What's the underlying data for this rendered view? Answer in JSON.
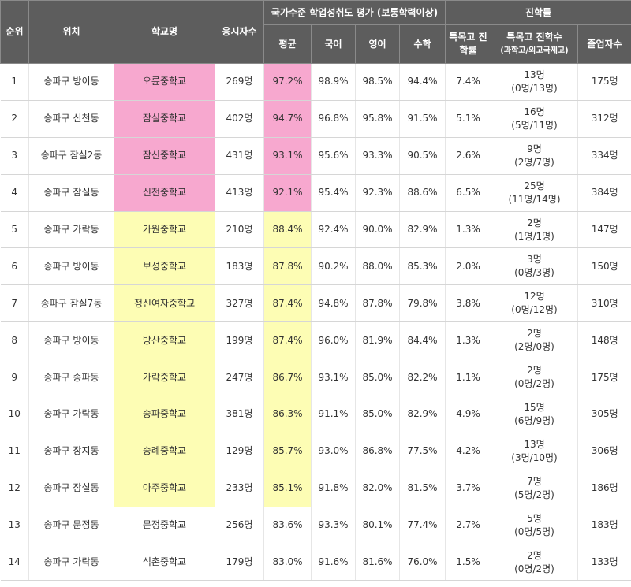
{
  "header": {
    "rank": "순위",
    "location": "위치",
    "school": "학교명",
    "examinees": "응시자수",
    "national_group": "국가수준 학업성취도 평가 (보통학력이상)",
    "avg": "평균",
    "korean": "국어",
    "english": "영어",
    "math": "수학",
    "advancement_group": "진학률",
    "special_rate": "특목고 진학률",
    "special_count_main": "특목고 진학수",
    "special_count_sub": "(과학고/외고국제고)",
    "graduates": "졸업자수"
  },
  "highlight_colors": {
    "pink": "#f7a8cf",
    "yellow": "#fdfdb4"
  },
  "rows": [
    {
      "rank": "1",
      "location": "송파구 방이동",
      "school": "오륜중학교",
      "examinees": "269명",
      "avg": "97.2%",
      "korean": "98.9%",
      "english": "98.5%",
      "math": "94.4%",
      "special_rate": "7.4%",
      "special_count": "13명",
      "special_detail": "(0명/13명)",
      "graduates": "175명",
      "highlight": "pink"
    },
    {
      "rank": "2",
      "location": "송파구 신천동",
      "school": "잠실중학교",
      "examinees": "402명",
      "avg": "94.7%",
      "korean": "96.8%",
      "english": "95.8%",
      "math": "91.5%",
      "special_rate": "5.1%",
      "special_count": "16명",
      "special_detail": "(5명/11명)",
      "graduates": "312명",
      "highlight": "pink"
    },
    {
      "rank": "3",
      "location": "송파구 잠실2동",
      "school": "잠신중학교",
      "examinees": "431명",
      "avg": "93.1%",
      "korean": "95.6%",
      "english": "93.3%",
      "math": "90.5%",
      "special_rate": "2.6%",
      "special_count": "9명",
      "special_detail": "(2명/7명)",
      "graduates": "334명",
      "highlight": "pink"
    },
    {
      "rank": "4",
      "location": "송파구 잠실동",
      "school": "신천중학교",
      "examinees": "413명",
      "avg": "92.1%",
      "korean": "95.4%",
      "english": "92.3%",
      "math": "88.6%",
      "special_rate": "6.5%",
      "special_count": "25명",
      "special_detail": "(11명/14명)",
      "graduates": "384명",
      "highlight": "pink"
    },
    {
      "rank": "5",
      "location": "송파구 가락동",
      "school": "가원중학교",
      "examinees": "210명",
      "avg": "88.4%",
      "korean": "92.4%",
      "english": "90.0%",
      "math": "82.9%",
      "special_rate": "1.3%",
      "special_count": "2명",
      "special_detail": "(1명/1명)",
      "graduates": "147명",
      "highlight": "yellow"
    },
    {
      "rank": "6",
      "location": "송파구 방이동",
      "school": "보성중학교",
      "examinees": "183명",
      "avg": "87.8%",
      "korean": "90.2%",
      "english": "88.0%",
      "math": "85.3%",
      "special_rate": "2.0%",
      "special_count": "3명",
      "special_detail": "(0명/3명)",
      "graduates": "150명",
      "highlight": "yellow"
    },
    {
      "rank": "7",
      "location": "송파구 잠실7동",
      "school": "정신여자중학교",
      "examinees": "327명",
      "avg": "87.4%",
      "korean": "94.8%",
      "english": "87.8%",
      "math": "79.8%",
      "special_rate": "3.8%",
      "special_count": "12명",
      "special_detail": "(0명/12명)",
      "graduates": "310명",
      "highlight": "yellow"
    },
    {
      "rank": "8",
      "location": "송파구 방이동",
      "school": "방산중학교",
      "examinees": "199명",
      "avg": "87.4%",
      "korean": "96.0%",
      "english": "81.9%",
      "math": "84.4%",
      "special_rate": "1.3%",
      "special_count": "2명",
      "special_detail": "(2명/0명)",
      "graduates": "148명",
      "highlight": "yellow"
    },
    {
      "rank": "9",
      "location": "송파구 송파동",
      "school": "가락중학교",
      "examinees": "247명",
      "avg": "86.7%",
      "korean": "93.1%",
      "english": "85.0%",
      "math": "82.2%",
      "special_rate": "1.1%",
      "special_count": "2명",
      "special_detail": "(0명/2명)",
      "graduates": "175명",
      "highlight": "yellow"
    },
    {
      "rank": "10",
      "location": "송파구 가락동",
      "school": "송파중학교",
      "examinees": "381명",
      "avg": "86.3%",
      "korean": "91.1%",
      "english": "85.0%",
      "math": "82.9%",
      "special_rate": "4.9%",
      "special_count": "15명",
      "special_detail": "(6명/9명)",
      "graduates": "305명",
      "highlight": "yellow"
    },
    {
      "rank": "11",
      "location": "송파구 장지동",
      "school": "송례중학교",
      "examinees": "129명",
      "avg": "85.7%",
      "korean": "93.0%",
      "english": "86.8%",
      "math": "77.5%",
      "special_rate": "4.2%",
      "special_count": "13명",
      "special_detail": "(3명/10명)",
      "graduates": "306명",
      "highlight": "yellow"
    },
    {
      "rank": "12",
      "location": "송파구 잠실동",
      "school": "아주중학교",
      "examinees": "233명",
      "avg": "85.1%",
      "korean": "91.8%",
      "english": "82.0%",
      "math": "81.5%",
      "special_rate": "3.7%",
      "special_count": "7명",
      "special_detail": "(5명/2명)",
      "graduates": "186명",
      "highlight": "yellow"
    },
    {
      "rank": "13",
      "location": "송파구 문정동",
      "school": "문정중학교",
      "examinees": "256명",
      "avg": "83.6%",
      "korean": "93.3%",
      "english": "80.1%",
      "math": "77.4%",
      "special_rate": "2.7%",
      "special_count": "5명",
      "special_detail": "(0명/5명)",
      "graduates": "183명",
      "highlight": ""
    },
    {
      "rank": "14",
      "location": "송파구 가락동",
      "school": "석촌중학교",
      "examinees": "179명",
      "avg": "83.0%",
      "korean": "91.6%",
      "english": "81.6%",
      "math": "76.0%",
      "special_rate": "1.5%",
      "special_count": "2명",
      "special_detail": "(0명/2명)",
      "graduates": "133명",
      "highlight": ""
    }
  ]
}
